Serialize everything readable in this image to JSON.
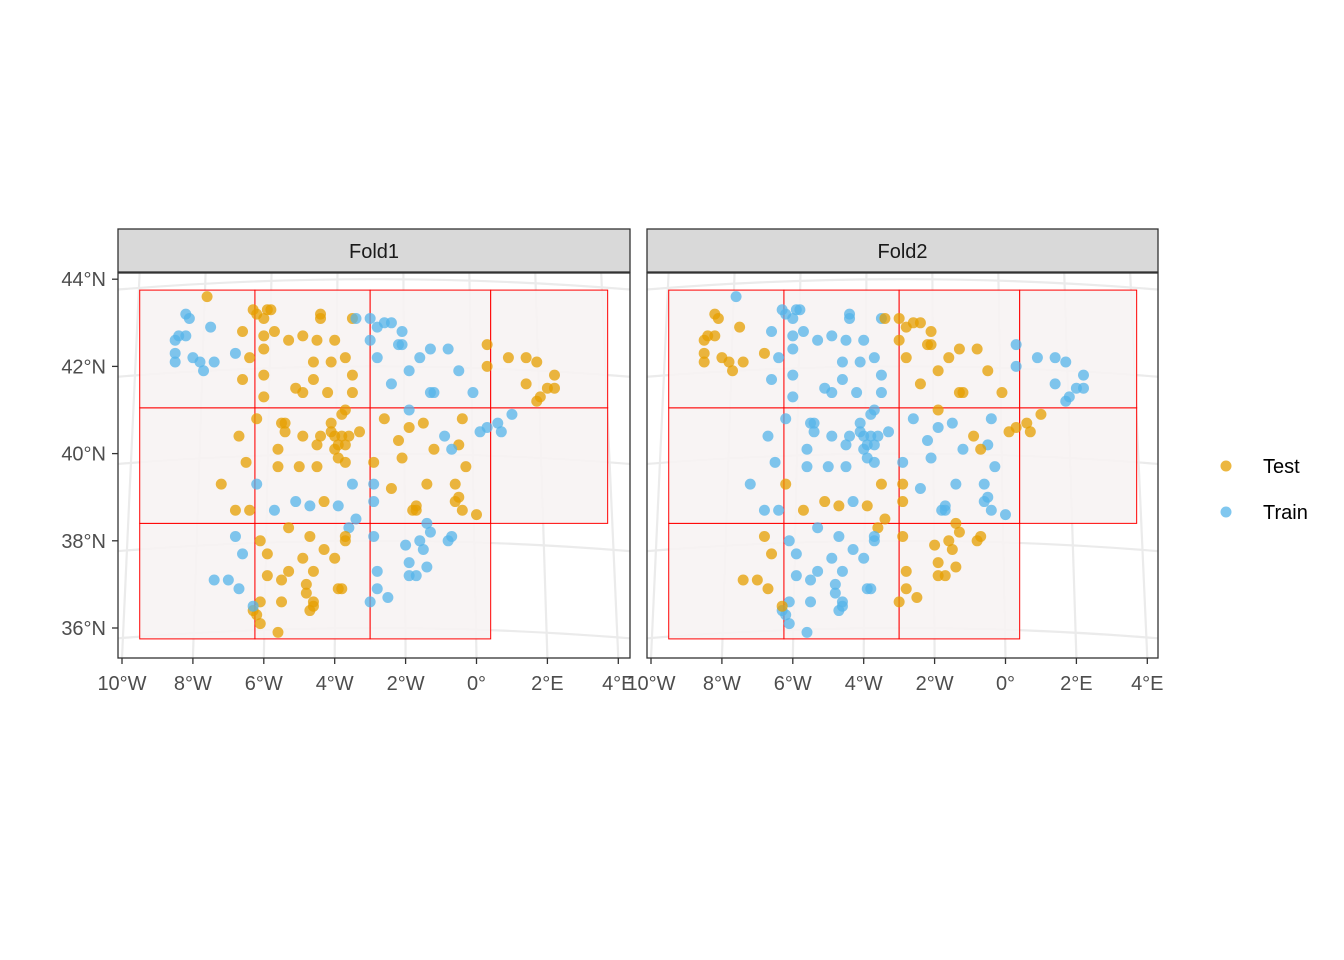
{
  "chart_data": {
    "type": "scatter",
    "facets": [
      "Fold1",
      "Fold2"
    ],
    "x_ticks": [
      "10°W",
      "8°W",
      "6°W",
      "4°W",
      "2°W",
      "0°",
      "2°E",
      "4°E"
    ],
    "y_ticks": [
      "44°N",
      "42°N",
      "40°N",
      "38°N",
      "36°N"
    ],
    "x_range_deg": [
      -10,
      4
    ],
    "y_range_deg": [
      35.5,
      44.2
    ],
    "legend": {
      "position": "right",
      "entries": [
        {
          "label": "Test",
          "color": "#E69F00"
        },
        {
          "label": "Train",
          "color": "#56B4E9"
        }
      ]
    },
    "grid_blocks": {
      "lon_breaks": [
        -9.5,
        -6.25,
        -3.0,
        0.4,
        3.7
      ],
      "lat_breaks": [
        35.75,
        38.4,
        41.05,
        43.75
      ],
      "line_color": "#FF0000",
      "fill_color": "#F7F3F3"
    },
    "points": [
      {
        "x": -7.6,
        "y": 43.6,
        "g": 3
      },
      {
        "x": -8.2,
        "y": 43.2,
        "g": 2
      },
      {
        "x": -8.1,
        "y": 43.1,
        "g": 2
      },
      {
        "x": -7.5,
        "y": 42.9,
        "g": 2
      },
      {
        "x": -8.2,
        "y": 42.7,
        "g": 2
      },
      {
        "x": -8.4,
        "y": 42.7,
        "g": 2
      },
      {
        "x": -8.5,
        "y": 42.6,
        "g": 2
      },
      {
        "x": -8.5,
        "y": 42.3,
        "g": 2
      },
      {
        "x": -8.5,
        "y": 42.1,
        "g": 2
      },
      {
        "x": -8.0,
        "y": 42.2,
        "g": 2
      },
      {
        "x": -7.8,
        "y": 42.1,
        "g": 2
      },
      {
        "x": -7.4,
        "y": 42.1,
        "g": 2
      },
      {
        "x": -7.7,
        "y": 41.9,
        "g": 2
      },
      {
        "x": -6.8,
        "y": 42.3,
        "g": 2
      },
      {
        "x": -6.3,
        "y": 43.3,
        "g": 1
      },
      {
        "x": -6.2,
        "y": 43.2,
        "g": 1
      },
      {
        "x": -5.9,
        "y": 43.3,
        "g": 1
      },
      {
        "x": -5.8,
        "y": 43.3,
        "g": 1
      },
      {
        "x": -6.0,
        "y": 43.1,
        "g": 1
      },
      {
        "x": -6.6,
        "y": 42.8,
        "g": 1
      },
      {
        "x": -6.0,
        "y": 42.7,
        "g": 1
      },
      {
        "x": -5.7,
        "y": 42.8,
        "g": 1
      },
      {
        "x": -6.0,
        "y": 42.4,
        "g": 1
      },
      {
        "x": -6.4,
        "y": 42.2,
        "g": 1
      },
      {
        "x": -6.6,
        "y": 41.7,
        "g": 1
      },
      {
        "x": -6.0,
        "y": 41.8,
        "g": 1
      },
      {
        "x": -6.0,
        "y": 41.3,
        "g": 1
      },
      {
        "x": -5.3,
        "y": 42.6,
        "g": 1
      },
      {
        "x": -4.9,
        "y": 42.7,
        "g": 1
      },
      {
        "x": -4.4,
        "y": 43.2,
        "g": 1
      },
      {
        "x": -4.4,
        "y": 43.1,
        "g": 1
      },
      {
        "x": -4.5,
        "y": 42.6,
        "g": 1
      },
      {
        "x": -4.0,
        "y": 42.6,
        "g": 1
      },
      {
        "x": -3.5,
        "y": 43.1,
        "g": 1
      },
      {
        "x": -4.6,
        "y": 42.1,
        "g": 1
      },
      {
        "x": -4.6,
        "y": 41.7,
        "g": 1
      },
      {
        "x": -5.1,
        "y": 41.5,
        "g": 1
      },
      {
        "x": -4.9,
        "y": 41.4,
        "g": 1
      },
      {
        "x": -4.1,
        "y": 42.1,
        "g": 1
      },
      {
        "x": -3.7,
        "y": 42.2,
        "g": 1
      },
      {
        "x": -3.5,
        "y": 41.8,
        "g": 1
      },
      {
        "x": -4.2,
        "y": 41.4,
        "g": 1
      },
      {
        "x": -3.5,
        "y": 41.4,
        "g": 1
      },
      {
        "x": -3.4,
        "y": 43.1,
        "g": 2
      },
      {
        "x": -3.0,
        "y": 43.1,
        "g": 2
      },
      {
        "x": -2.8,
        "y": 42.9,
        "g": 2
      },
      {
        "x": -2.6,
        "y": 43.0,
        "g": 2
      },
      {
        "x": -2.4,
        "y": 43.0,
        "g": 2
      },
      {
        "x": -2.1,
        "y": 42.8,
        "g": 2
      },
      {
        "x": -3.0,
        "y": 42.6,
        "g": 2
      },
      {
        "x": -2.2,
        "y": 42.5,
        "g": 2
      },
      {
        "x": -2.1,
        "y": 42.5,
        "g": 2
      },
      {
        "x": -2.8,
        "y": 42.2,
        "g": 2
      },
      {
        "x": -1.6,
        "y": 42.2,
        "g": 2
      },
      {
        "x": -1.3,
        "y": 42.4,
        "g": 2
      },
      {
        "x": -0.8,
        "y": 42.4,
        "g": 2
      },
      {
        "x": -0.5,
        "y": 41.9,
        "g": 2
      },
      {
        "x": -1.9,
        "y": 41.9,
        "g": 2
      },
      {
        "x": -2.4,
        "y": 41.6,
        "g": 2
      },
      {
        "x": -1.3,
        "y": 41.4,
        "g": 2
      },
      {
        "x": -1.2,
        "y": 41.4,
        "g": 2
      },
      {
        "x": -0.1,
        "y": 41.4,
        "g": 2
      },
      {
        "x": 0.3,
        "y": 42.5,
        "g": 1
      },
      {
        "x": 0.9,
        "y": 42.2,
        "g": 1
      },
      {
        "x": 1.4,
        "y": 42.2,
        "g": 1
      },
      {
        "x": 1.7,
        "y": 42.1,
        "g": 1
      },
      {
        "x": 0.3,
        "y": 42.0,
        "g": 1
      },
      {
        "x": 2.2,
        "y": 41.8,
        "g": 1
      },
      {
        "x": 1.4,
        "y": 41.6,
        "g": 1
      },
      {
        "x": 2.2,
        "y": 41.5,
        "g": 1
      },
      {
        "x": 2.0,
        "y": 41.5,
        "g": 1
      },
      {
        "x": 1.8,
        "y": 41.3,
        "g": 1
      },
      {
        "x": 1.7,
        "y": 41.2,
        "g": 1
      },
      {
        "x": -6.2,
        "y": 40.8,
        "g": 3
      },
      {
        "x": -5.5,
        "y": 40.7,
        "g": 3
      },
      {
        "x": -5.4,
        "y": 40.7,
        "g": 3
      },
      {
        "x": -6.7,
        "y": 40.4,
        "g": 3
      },
      {
        "x": -5.6,
        "y": 40.1,
        "g": 3
      },
      {
        "x": -6.5,
        "y": 39.8,
        "g": 3
      },
      {
        "x": -5.6,
        "y": 39.7,
        "g": 3
      },
      {
        "x": -5.0,
        "y": 39.7,
        "g": 3
      },
      {
        "x": -4.5,
        "y": 39.7,
        "g": 3
      },
      {
        "x": -5.4,
        "y": 40.5,
        "g": 3
      },
      {
        "x": -4.9,
        "y": 40.4,
        "g": 3
      },
      {
        "x": -4.4,
        "y": 40.4,
        "g": 3
      },
      {
        "x": -4.1,
        "y": 40.7,
        "g": 3
      },
      {
        "x": -3.8,
        "y": 40.9,
        "g": 3
      },
      {
        "x": -3.7,
        "y": 41.0,
        "g": 3
      },
      {
        "x": -4.1,
        "y": 40.5,
        "g": 3
      },
      {
        "x": -3.8,
        "y": 40.4,
        "g": 3
      },
      {
        "x": -3.6,
        "y": 40.4,
        "g": 3
      },
      {
        "x": -3.7,
        "y": 40.2,
        "g": 3
      },
      {
        "x": -3.9,
        "y": 40.2,
        "g": 3
      },
      {
        "x": -4.0,
        "y": 40.1,
        "g": 3
      },
      {
        "x": -4.5,
        "y": 40.2,
        "g": 3
      },
      {
        "x": -3.9,
        "y": 39.9,
        "g": 3
      },
      {
        "x": -3.7,
        "y": 39.8,
        "g": 3
      },
      {
        "x": -2.9,
        "y": 39.8,
        "g": 3
      },
      {
        "x": -4.0,
        "y": 40.4,
        "g": 3
      },
      {
        "x": -3.3,
        "y": 40.5,
        "g": 1
      },
      {
        "x": -2.6,
        "y": 40.8,
        "g": 1
      },
      {
        "x": -1.9,
        "y": 40.6,
        "g": 1
      },
      {
        "x": -1.5,
        "y": 40.7,
        "g": 1
      },
      {
        "x": -2.2,
        "y": 40.3,
        "g": 1
      },
      {
        "x": -2.1,
        "y": 39.9,
        "g": 1
      },
      {
        "x": -1.2,
        "y": 40.1,
        "g": 1
      },
      {
        "x": -0.4,
        "y": 40.8,
        "g": 1
      },
      {
        "x": -0.5,
        "y": 40.2,
        "g": 1
      },
      {
        "x": -0.3,
        "y": 39.7,
        "g": 1
      },
      {
        "x": -7.2,
        "y": 39.3,
        "g": 1
      },
      {
        "x": -6.8,
        "y": 38.7,
        "g": 1
      },
      {
        "x": -6.4,
        "y": 38.7,
        "g": 1
      },
      {
        "x": -1.9,
        "y": 41.0,
        "g": 2
      },
      {
        "x": -0.9,
        "y": 40.4,
        "g": 2
      },
      {
        "x": -0.7,
        "y": 40.1,
        "g": 2
      },
      {
        "x": 0.6,
        "y": 40.7,
        "g": 2
      },
      {
        "x": 0.7,
        "y": 40.5,
        "g": 2
      },
      {
        "x": 1.0,
        "y": 40.9,
        "g": 2
      },
      {
        "x": 0.3,
        "y": 40.6,
        "g": 2
      },
      {
        "x": 0.1,
        "y": 40.5,
        "g": 2
      },
      {
        "x": -6.2,
        "y": 39.3,
        "g": 2
      },
      {
        "x": -5.7,
        "y": 38.7,
        "g": 2
      },
      {
        "x": -5.1,
        "y": 38.9,
        "g": 2
      },
      {
        "x": -4.7,
        "y": 38.8,
        "g": 2
      },
      {
        "x": -3.9,
        "y": 38.8,
        "g": 2
      },
      {
        "x": -3.5,
        "y": 39.3,
        "g": 2
      },
      {
        "x": -2.9,
        "y": 39.3,
        "g": 2
      },
      {
        "x": -2.9,
        "y": 38.9,
        "g": 2
      },
      {
        "x": -3.4,
        "y": 38.5,
        "g": 2
      },
      {
        "x": -3.6,
        "y": 38.3,
        "g": 2
      },
      {
        "x": -4.3,
        "y": 38.9,
        "g": 1
      },
      {
        "x": -2.4,
        "y": 39.2,
        "g": 1
      },
      {
        "x": -1.4,
        "y": 39.3,
        "g": 1
      },
      {
        "x": -0.6,
        "y": 39.3,
        "g": 1
      },
      {
        "x": -0.5,
        "y": 39.0,
        "g": 1
      },
      {
        "x": -0.6,
        "y": 38.9,
        "g": 1
      },
      {
        "x": -1.8,
        "y": 38.7,
        "g": 1
      },
      {
        "x": -1.7,
        "y": 38.8,
        "g": 1
      },
      {
        "x": -1.7,
        "y": 38.7,
        "g": 1
      },
      {
        "x": -0.4,
        "y": 38.7,
        "g": 1
      },
      {
        "x": 0.0,
        "y": 38.6,
        "g": 1
      },
      {
        "x": -5.3,
        "y": 38.3,
        "g": 3
      },
      {
        "x": -4.7,
        "y": 38.1,
        "g": 3
      },
      {
        "x": -3.7,
        "y": 38.1,
        "g": 3
      },
      {
        "x": -3.7,
        "y": 38.0,
        "g": 3
      },
      {
        "x": -6.1,
        "y": 38.0,
        "g": 3
      },
      {
        "x": -5.9,
        "y": 37.7,
        "g": 3
      },
      {
        "x": -4.9,
        "y": 37.6,
        "g": 3
      },
      {
        "x": -4.3,
        "y": 37.8,
        "g": 3
      },
      {
        "x": -4.0,
        "y": 37.6,
        "g": 3
      },
      {
        "x": -5.9,
        "y": 37.2,
        "g": 3
      },
      {
        "x": -5.3,
        "y": 37.3,
        "g": 3
      },
      {
        "x": -4.6,
        "y": 37.3,
        "g": 3
      },
      {
        "x": -4.8,
        "y": 37.0,
        "g": 3
      },
      {
        "x": -5.5,
        "y": 37.1,
        "g": 3
      },
      {
        "x": -4.8,
        "y": 36.8,
        "g": 3
      },
      {
        "x": -3.9,
        "y": 36.9,
        "g": 3
      },
      {
        "x": -3.8,
        "y": 36.9,
        "g": 3
      },
      {
        "x": -6.1,
        "y": 36.6,
        "g": 3
      },
      {
        "x": -5.5,
        "y": 36.6,
        "g": 3
      },
      {
        "x": -4.6,
        "y": 36.6,
        "g": 3
      },
      {
        "x": -4.6,
        "y": 36.5,
        "g": 3
      },
      {
        "x": -4.7,
        "y": 36.4,
        "g": 3
      },
      {
        "x": -6.3,
        "y": 36.4,
        "g": 3
      },
      {
        "x": -6.2,
        "y": 36.3,
        "g": 3
      },
      {
        "x": -6.1,
        "y": 36.1,
        "g": 3
      },
      {
        "x": -5.6,
        "y": 35.9,
        "g": 3
      },
      {
        "x": -6.8,
        "y": 38.1,
        "g": 2
      },
      {
        "x": -6.6,
        "y": 37.7,
        "g": 2
      },
      {
        "x": -7.4,
        "y": 37.1,
        "g": 2
      },
      {
        "x": -7.0,
        "y": 37.1,
        "g": 2
      },
      {
        "x": -6.7,
        "y": 36.9,
        "g": 2
      },
      {
        "x": -6.3,
        "y": 36.5,
        "g": 2
      },
      {
        "x": -2.9,
        "y": 38.1,
        "g": 2
      },
      {
        "x": -2.8,
        "y": 37.3,
        "g": 2
      },
      {
        "x": -2.8,
        "y": 36.9,
        "g": 2
      },
      {
        "x": -3.0,
        "y": 36.6,
        "g": 2
      },
      {
        "x": -2.5,
        "y": 36.7,
        "g": 2
      },
      {
        "x": -2.0,
        "y": 37.9,
        "g": 2
      },
      {
        "x": -1.9,
        "y": 37.5,
        "g": 2
      },
      {
        "x": -1.5,
        "y": 37.8,
        "g": 2
      },
      {
        "x": -1.4,
        "y": 37.4,
        "g": 2
      },
      {
        "x": -1.9,
        "y": 37.2,
        "g": 2
      },
      {
        "x": -1.7,
        "y": 37.2,
        "g": 2
      },
      {
        "x": -1.3,
        "y": 38.2,
        "g": 2
      },
      {
        "x": -1.6,
        "y": 38.0,
        "g": 2
      },
      {
        "x": -0.8,
        "y": 38.0,
        "g": 2
      },
      {
        "x": -0.7,
        "y": 38.1,
        "g": 2
      },
      {
        "x": -1.4,
        "y": 38.4,
        "g": 2
      }
    ]
  }
}
